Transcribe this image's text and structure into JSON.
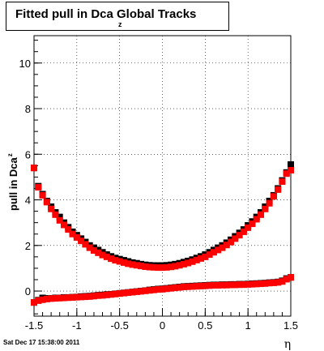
{
  "title": {
    "main": "Fitted pull in Dca Global Tracks",
    "sub": "z"
  },
  "ylabel": {
    "main": "pull in Dca",
    "sub": "z"
  },
  "footer": "Sat Dec 17 15:38:00 2011",
  "chart_data": {
    "type": "scatter",
    "title": "Fitted pull in Dca Global Tracks",
    "xlabel": "η",
    "ylabel": "pull in Dca z",
    "xlim": [
      -1.5,
      1.5
    ],
    "ylim": [
      -1.1,
      11.2
    ],
    "grid": true,
    "xticks": [
      -1.5,
      -1,
      -0.5,
      0,
      0.5,
      1,
      1.5
    ],
    "xtick_labels": [
      "-1.5",
      "-1",
      "-0.5",
      "0",
      "0.5",
      "1",
      "1.5"
    ],
    "yticks": [
      0,
      2,
      4,
      6,
      8,
      10
    ],
    "ytick_labels": [
      "0",
      "2",
      "4",
      "6",
      "8",
      "10"
    ],
    "series": [
      {
        "color": "#000000",
        "marker": "square",
        "x": [
          -1.5,
          -1.45,
          -1.4,
          -1.35,
          -1.3,
          -1.25,
          -1.2,
          -1.15,
          -1.1,
          -1.05,
          -1.0,
          -0.95,
          -0.9,
          -0.85,
          -0.8,
          -0.75,
          -0.7,
          -0.65,
          -0.6,
          -0.55,
          -0.5,
          -0.45,
          -0.4,
          -0.35,
          -0.3,
          -0.25,
          -0.2,
          -0.15,
          -0.1,
          -0.05,
          0.0,
          0.05,
          0.1,
          0.15,
          0.2,
          0.25,
          0.3,
          0.35,
          0.4,
          0.45,
          0.5,
          0.55,
          0.6,
          0.65,
          0.7,
          0.75,
          0.8,
          0.85,
          0.9,
          0.95,
          1.0,
          1.05,
          1.1,
          1.15,
          1.2,
          1.25,
          1.3,
          1.35,
          1.4,
          1.45,
          1.5
        ],
        "y": [
          5.4,
          4.6,
          4.25,
          3.95,
          3.7,
          3.45,
          3.25,
          3.0,
          2.8,
          2.6,
          2.45,
          2.3,
          2.15,
          2.0,
          1.9,
          1.8,
          1.7,
          1.6,
          1.52,
          1.45,
          1.4,
          1.35,
          1.3,
          1.25,
          1.22,
          1.18,
          1.15,
          1.13,
          1.12,
          1.12,
          1.12,
          1.13,
          1.15,
          1.18,
          1.22,
          1.27,
          1.32,
          1.38,
          1.45,
          1.52,
          1.6,
          1.7,
          1.8,
          1.9,
          2.0,
          2.12,
          2.25,
          2.4,
          2.55,
          2.7,
          2.88,
          3.05,
          3.25,
          3.45,
          3.7,
          3.95,
          4.2,
          4.5,
          4.85,
          5.2,
          5.55
        ]
      },
      {
        "color": "#ff0000",
        "marker": "square",
        "x": [
          -1.5,
          -1.45,
          -1.4,
          -1.35,
          -1.3,
          -1.25,
          -1.2,
          -1.15,
          -1.1,
          -1.05,
          -1.0,
          -0.95,
          -0.9,
          -0.85,
          -0.8,
          -0.75,
          -0.7,
          -0.65,
          -0.6,
          -0.55,
          -0.5,
          -0.45,
          -0.4,
          -0.35,
          -0.3,
          -0.25,
          -0.2,
          -0.15,
          -0.1,
          -0.05,
          0.0,
          0.05,
          0.1,
          0.15,
          0.2,
          0.25,
          0.3,
          0.35,
          0.4,
          0.45,
          0.5,
          0.55,
          0.6,
          0.65,
          0.7,
          0.75,
          0.8,
          0.85,
          0.9,
          0.95,
          1.0,
          1.05,
          1.1,
          1.15,
          1.2,
          1.25,
          1.3,
          1.35,
          1.4,
          1.45,
          1.5
        ],
        "y": [
          5.4,
          4.55,
          4.2,
          3.9,
          3.6,
          3.35,
          3.1,
          2.9,
          2.7,
          2.5,
          2.35,
          2.2,
          2.05,
          1.9,
          1.78,
          1.68,
          1.58,
          1.5,
          1.42,
          1.35,
          1.3,
          1.25,
          1.2,
          1.16,
          1.13,
          1.1,
          1.07,
          1.05,
          1.04,
          1.03,
          1.03,
          1.04,
          1.06,
          1.09,
          1.13,
          1.18,
          1.23,
          1.29,
          1.36,
          1.43,
          1.5,
          1.6,
          1.7,
          1.8,
          1.9,
          2.02,
          2.15,
          2.3,
          2.45,
          2.6,
          2.78,
          2.95,
          3.15,
          3.35,
          3.6,
          3.85,
          4.15,
          4.45,
          4.8,
          5.15,
          5.3
        ]
      },
      {
        "color": "#000000",
        "marker": "square",
        "x": [
          -1.5,
          -1.45,
          -1.4,
          -1.35,
          -1.3,
          -1.25,
          -1.2,
          -1.15,
          -1.1,
          -1.05,
          -1.0,
          -0.95,
          -0.9,
          -0.85,
          -0.8,
          -0.75,
          -0.7,
          -0.65,
          -0.6,
          -0.55,
          -0.5,
          -0.45,
          -0.4,
          -0.35,
          -0.3,
          -0.25,
          -0.2,
          -0.15,
          -0.1,
          -0.05,
          0.0,
          0.05,
          0.1,
          0.15,
          0.2,
          0.25,
          0.3,
          0.35,
          0.4,
          0.45,
          0.5,
          0.55,
          0.6,
          0.65,
          0.7,
          0.75,
          0.8,
          0.85,
          0.9,
          0.95,
          1.0,
          1.05,
          1.1,
          1.15,
          1.2,
          1.25,
          1.3,
          1.35,
          1.4,
          1.45,
          1.5
        ],
        "y": [
          -0.5,
          -0.4,
          -0.3,
          -0.32,
          -0.32,
          -0.3,
          -0.3,
          -0.28,
          -0.28,
          -0.27,
          -0.26,
          -0.24,
          -0.23,
          -0.22,
          -0.2,
          -0.18,
          -0.17,
          -0.15,
          -0.14,
          -0.12,
          -0.1,
          -0.08,
          -0.06,
          -0.04,
          -0.02,
          0.0,
          0.02,
          0.05,
          0.07,
          0.09,
          0.1,
          0.12,
          0.14,
          0.16,
          0.18,
          0.2,
          0.21,
          0.22,
          0.23,
          0.24,
          0.25,
          0.26,
          0.27,
          0.27,
          0.28,
          0.28,
          0.29,
          0.29,
          0.3,
          0.3,
          0.31,
          0.32,
          0.33,
          0.34,
          0.35,
          0.37,
          0.38,
          0.4,
          0.45,
          0.55,
          0.6
        ]
      },
      {
        "color": "#ff0000",
        "marker": "square",
        "x": [
          -1.5,
          -1.45,
          -1.4,
          -1.35,
          -1.3,
          -1.25,
          -1.2,
          -1.15,
          -1.1,
          -1.05,
          -1.0,
          -0.95,
          -0.9,
          -0.85,
          -0.8,
          -0.75,
          -0.7,
          -0.65,
          -0.6,
          -0.55,
          -0.5,
          -0.45,
          -0.4,
          -0.35,
          -0.3,
          -0.25,
          -0.2,
          -0.15,
          -0.1,
          -0.05,
          0.0,
          0.05,
          0.1,
          0.15,
          0.2,
          0.25,
          0.3,
          0.35,
          0.4,
          0.45,
          0.5,
          0.55,
          0.6,
          0.65,
          0.7,
          0.75,
          0.8,
          0.85,
          0.9,
          0.95,
          1.0,
          1.05,
          1.1,
          1.15,
          1.2,
          1.25,
          1.3,
          1.35,
          1.4,
          1.45,
          1.5
        ],
        "y": [
          -0.5,
          -0.42,
          -0.38,
          -0.35,
          -0.33,
          -0.32,
          -0.31,
          -0.3,
          -0.29,
          -0.28,
          -0.27,
          -0.26,
          -0.25,
          -0.24,
          -0.22,
          -0.2,
          -0.19,
          -0.17,
          -0.15,
          -0.13,
          -0.11,
          -0.09,
          -0.07,
          -0.05,
          -0.03,
          -0.01,
          0.01,
          0.03,
          0.05,
          0.07,
          0.08,
          0.1,
          0.12,
          0.14,
          0.16,
          0.18,
          0.19,
          0.2,
          0.21,
          0.22,
          0.23,
          0.24,
          0.25,
          0.25,
          0.26,
          0.26,
          0.27,
          0.27,
          0.28,
          0.28,
          0.29,
          0.3,
          0.31,
          0.32,
          0.33,
          0.35,
          0.36,
          0.38,
          0.42,
          0.52,
          0.6
        ]
      }
    ]
  }
}
